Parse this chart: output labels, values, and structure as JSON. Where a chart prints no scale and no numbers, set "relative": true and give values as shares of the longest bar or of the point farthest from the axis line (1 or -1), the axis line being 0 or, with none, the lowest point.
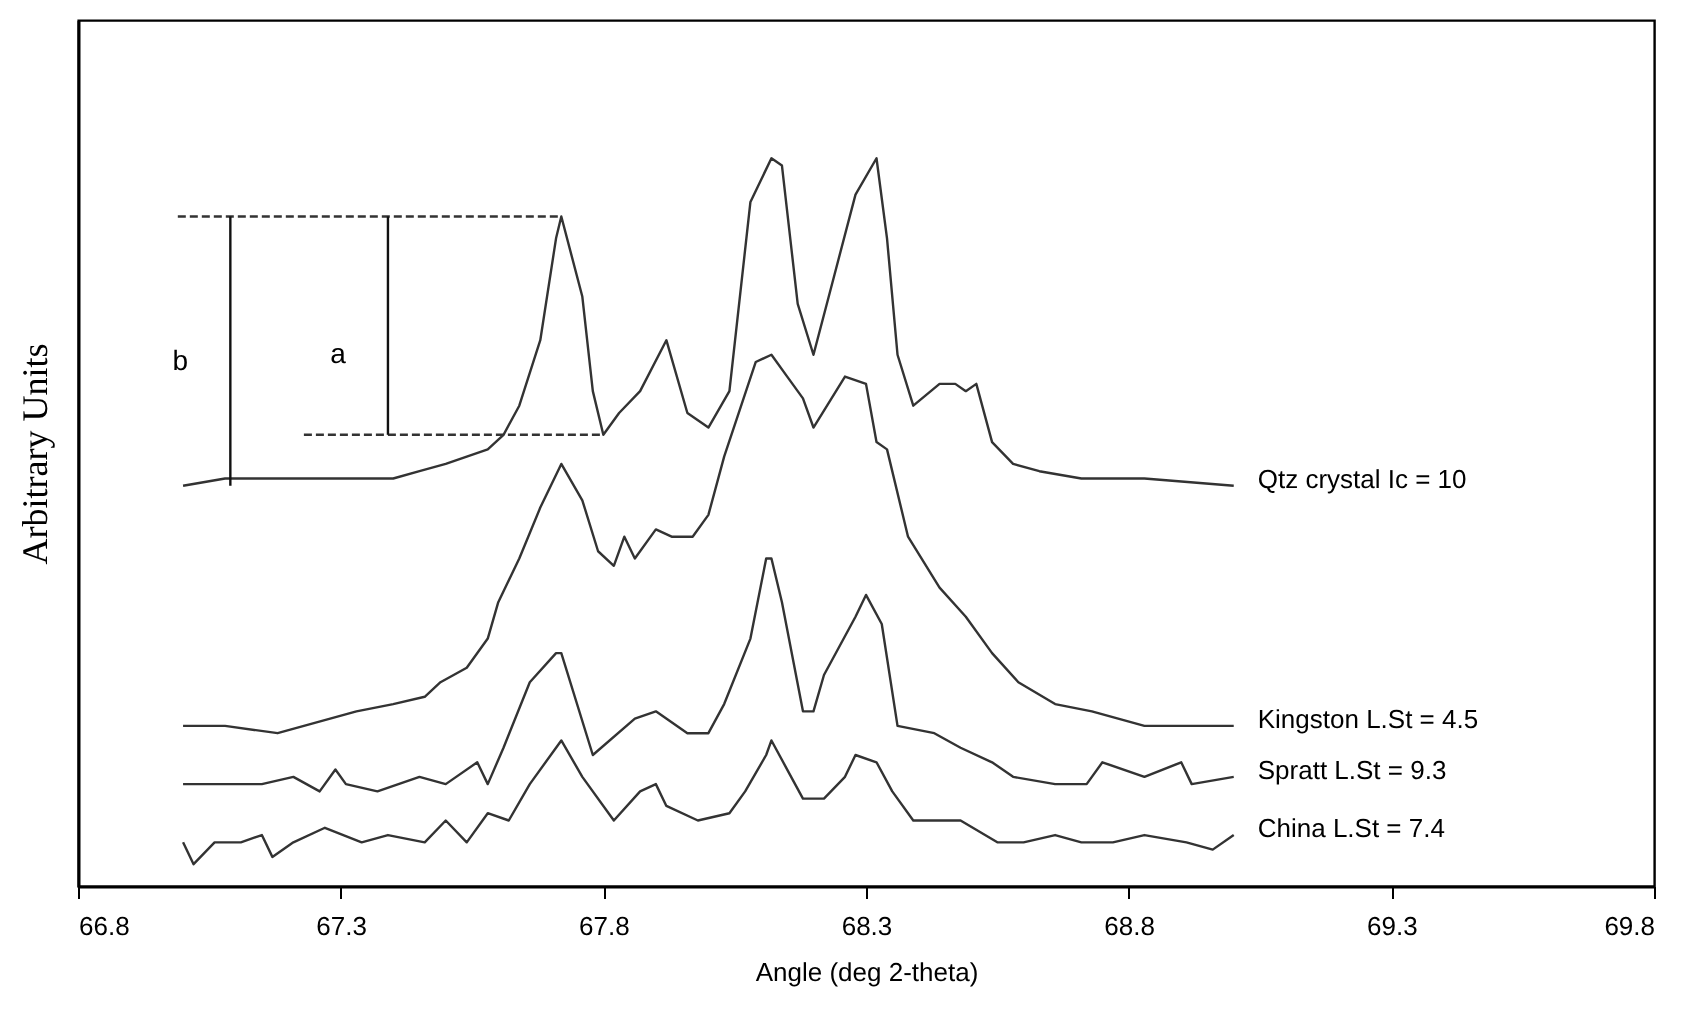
{
  "chart_data": {
    "type": "line",
    "relative": true,
    "xlabel": "Angle (deg 2-theta)",
    "ylabel": "Arbitrary Units",
    "xlim": [
      66.8,
      69.8
    ],
    "xticks": [
      66.8,
      67.3,
      67.8,
      68.3,
      68.8,
      69.3,
      69.8
    ],
    "grid": false,
    "marker": "none",
    "line_style": "solid",
    "series": [
      {
        "name": "Qtz crystal Ic = 10",
        "color": "#333333",
        "x": [
          67.0,
          67.08,
          67.21,
          67.4,
          67.45,
          67.5,
          67.54,
          67.58,
          67.61,
          67.64,
          67.68,
          67.71,
          67.72,
          67.76,
          67.78,
          67.8,
          67.83,
          67.87,
          67.92,
          67.96,
          68.0,
          68.04,
          68.08,
          68.12,
          68.14,
          68.17,
          68.2,
          68.24,
          68.28,
          68.32,
          68.34,
          68.36,
          68.39,
          68.44,
          68.47,
          68.49,
          68.51,
          68.54,
          68.58,
          68.63,
          68.71,
          68.83,
          69.0
        ],
        "values": [
          0.55,
          0.56,
          0.56,
          0.56,
          0.57,
          0.58,
          0.59,
          0.6,
          0.62,
          0.66,
          0.75,
          0.89,
          0.92,
          0.81,
          0.68,
          0.62,
          0.65,
          0.68,
          0.75,
          0.65,
          0.63,
          0.68,
          0.94,
          1.0,
          0.99,
          0.8,
          0.73,
          0.84,
          0.95,
          1.0,
          0.89,
          0.73,
          0.66,
          0.69,
          0.69,
          0.68,
          0.69,
          0.61,
          0.58,
          0.57,
          0.56,
          0.56,
          0.55
        ]
      },
      {
        "name": "Kingston L.St = 4.5",
        "color": "#333333",
        "x": [
          67.0,
          67.08,
          67.18,
          67.33,
          67.4,
          67.46,
          67.49,
          67.54,
          67.58,
          67.6,
          67.64,
          67.68,
          67.72,
          67.76,
          67.79,
          67.82,
          67.84,
          67.86,
          67.9,
          67.93,
          67.97,
          68.0,
          68.03,
          68.09,
          68.12,
          68.15,
          68.18,
          68.2,
          68.26,
          68.3,
          68.32,
          68.34,
          68.38,
          68.44,
          68.49,
          68.54,
          68.59,
          68.66,
          68.73,
          68.83,
          69.0
        ],
        "values": [
          0.22,
          0.22,
          0.21,
          0.24,
          0.25,
          0.26,
          0.28,
          0.3,
          0.34,
          0.39,
          0.45,
          0.52,
          0.58,
          0.53,
          0.46,
          0.44,
          0.48,
          0.45,
          0.49,
          0.48,
          0.48,
          0.51,
          0.59,
          0.72,
          0.73,
          0.7,
          0.67,
          0.63,
          0.7,
          0.69,
          0.61,
          0.6,
          0.48,
          0.41,
          0.37,
          0.32,
          0.28,
          0.25,
          0.24,
          0.22,
          0.22
        ]
      },
      {
        "name": "Spratt L.St = 9.3",
        "color": "#333333",
        "x": [
          67.0,
          67.06,
          67.15,
          67.21,
          67.26,
          67.29,
          67.31,
          67.37,
          67.45,
          67.5,
          67.56,
          67.58,
          67.61,
          67.66,
          67.71,
          67.72,
          67.78,
          67.86,
          67.9,
          67.96,
          68.0,
          68.03,
          68.08,
          68.11,
          68.12,
          68.14,
          68.18,
          68.2,
          68.22,
          68.28,
          68.3,
          68.33,
          68.36,
          68.43,
          68.48,
          68.54,
          68.58,
          68.66,
          68.72,
          68.75,
          68.83,
          68.9,
          68.92,
          69.0
        ],
        "values": [
          0.14,
          0.14,
          0.14,
          0.15,
          0.13,
          0.16,
          0.14,
          0.13,
          0.15,
          0.14,
          0.17,
          0.14,
          0.19,
          0.28,
          0.32,
          0.32,
          0.18,
          0.23,
          0.24,
          0.21,
          0.21,
          0.25,
          0.34,
          0.45,
          0.45,
          0.39,
          0.24,
          0.24,
          0.29,
          0.37,
          0.4,
          0.36,
          0.22,
          0.21,
          0.19,
          0.17,
          0.15,
          0.14,
          0.14,
          0.17,
          0.15,
          0.17,
          0.14,
          0.15
        ]
      },
      {
        "name": "China L.St = 7.4",
        "color": "#333333",
        "x": [
          67.0,
          67.02,
          67.06,
          67.11,
          67.15,
          67.17,
          67.21,
          67.27,
          67.34,
          67.39,
          67.46,
          67.5,
          67.54,
          67.58,
          67.62,
          67.66,
          67.72,
          67.76,
          67.82,
          67.87,
          67.9,
          67.92,
          67.98,
          68.04,
          68.07,
          68.11,
          68.12,
          68.15,
          68.18,
          68.22,
          68.26,
          68.28,
          68.32,
          68.35,
          68.39,
          68.48,
          68.55,
          68.6,
          68.66,
          68.71,
          68.77,
          68.83,
          68.91,
          68.96,
          69.0
        ],
        "values": [
          0.06,
          0.03,
          0.06,
          0.06,
          0.07,
          0.04,
          0.06,
          0.08,
          0.06,
          0.07,
          0.06,
          0.09,
          0.06,
          0.1,
          0.09,
          0.14,
          0.2,
          0.15,
          0.09,
          0.13,
          0.14,
          0.11,
          0.09,
          0.1,
          0.13,
          0.18,
          0.2,
          0.16,
          0.12,
          0.12,
          0.15,
          0.18,
          0.17,
          0.13,
          0.09,
          0.09,
          0.06,
          0.06,
          0.07,
          0.06,
          0.06,
          0.07,
          0.06,
          0.05,
          0.07
        ]
      },
      {
        "color": "#333333",
        "line_style": "dashed",
        "x": [
          66.99,
          67.72
        ],
        "values": [
          0.92,
          0.92
        ]
      },
      {
        "color": "#333333",
        "line_style": "dashed",
        "x": [
          67.23,
          67.8
        ],
        "values": [
          0.62,
          0.62
        ]
      },
      {
        "color": "#111111",
        "x": [
          67.09,
          67.09
        ],
        "values": [
          0.55,
          0.92
        ]
      },
      {
        "color": "#111111",
        "x": [
          67.39,
          67.39
        ],
        "values": [
          0.62,
          0.92
        ]
      }
    ],
    "annotations": [
      {
        "text": "b",
        "x": 67.09,
        "y": 0.72
      },
      {
        "text": "a",
        "x": 67.39,
        "y": 0.73
      }
    ]
  }
}
